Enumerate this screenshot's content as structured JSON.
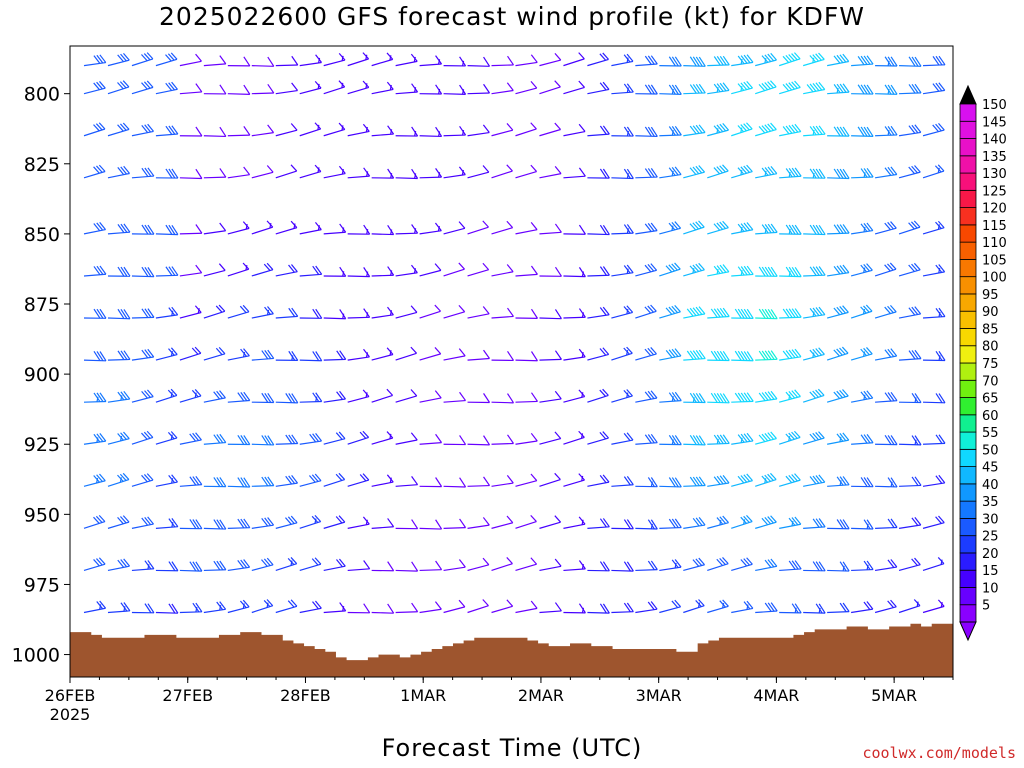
{
  "title": "2025022600 GFS forecast wind profile (kt) for KDFW",
  "chart_data": {
    "type": "wind-barb-profile",
    "title": "2025022600 GFS forecast wind profile (kt) for KDFW",
    "xlabel": "Forecast Time (UTC)",
    "ylabel": "",
    "x_ticks": [
      "26FEB",
      "27FEB",
      "28FEB",
      "1MAR",
      "2MAR",
      "3MAR",
      "4MAR",
      "5MAR"
    ],
    "x_year_label": "2025",
    "y_ticks": [
      800,
      825,
      850,
      875,
      900,
      925,
      950,
      975,
      1000
    ],
    "ylim": [
      1008,
      783
    ],
    "y_axis_reversed": true,
    "colorbar": {
      "values": [
        5,
        10,
        15,
        20,
        25,
        30,
        35,
        40,
        45,
        50,
        55,
        60,
        65,
        70,
        75,
        80,
        85,
        90,
        95,
        100,
        105,
        110,
        115,
        120,
        125,
        130,
        135,
        140,
        145,
        150
      ],
      "colors": [
        "#8a00ff",
        "#6800ff",
        "#4600ff",
        "#2a1cff",
        "#1c3cff",
        "#1a5aff",
        "#1478ff",
        "#1098ff",
        "#10b8ff",
        "#10d8ff",
        "#10f0d8",
        "#10f090",
        "#30f030",
        "#70f010",
        "#b0f010",
        "#f0f010",
        "#f8d800",
        "#f8c000",
        "#f8a800",
        "#f89000",
        "#f87800",
        "#f86000",
        "#f84800",
        "#f83020",
        "#f81848",
        "#f8107a",
        "#f010a8",
        "#e810c8",
        "#e010e0",
        "#d810f0"
      ]
    },
    "surface_pressure_hpa": [
      992,
      992,
      993,
      994,
      994,
      994,
      994,
      993,
      993,
      993,
      994,
      994,
      994,
      994,
      993,
      993,
      992,
      992,
      993,
      993,
      995,
      996,
      997,
      998,
      999,
      1001,
      1002,
      1002,
      1001,
      1000,
      1000,
      1001,
      1000,
      999,
      998,
      997,
      996,
      995,
      994,
      994,
      994,
      994,
      994,
      995,
      996,
      997,
      997,
      996,
      996,
      997,
      997,
      998,
      998,
      998,
      998,
      998,
      998,
      999,
      999,
      996,
      995,
      994,
      994,
      994,
      994,
      994,
      994,
      994,
      993,
      992,
      991,
      991,
      991,
      990,
      990,
      991,
      991,
      990,
      990,
      989,
      990,
      989,
      989
    ],
    "wind_rows": [
      {
        "level": 790,
        "speeds": [
          30,
          30,
          30,
          30,
          8,
          8,
          8,
          10,
          12,
          15,
          15,
          15,
          15,
          15,
          15,
          15,
          12,
          10,
          8,
          8,
          12,
          20,
          25,
          28,
          32,
          40,
          42,
          44,
          45,
          48,
          46,
          42,
          38,
          35,
          32,
          30
        ]
      },
      {
        "level": 800,
        "speeds": [
          30,
          30,
          30,
          30,
          8,
          8,
          8,
          10,
          12,
          15,
          15,
          15,
          15,
          15,
          15,
          15,
          12,
          10,
          8,
          8,
          12,
          20,
          25,
          28,
          35,
          42,
          44,
          46,
          48,
          50,
          48,
          44,
          40,
          36,
          32,
          30
        ]
      },
      {
        "level": 815,
        "speeds": [
          30,
          30,
          30,
          30,
          8,
          8,
          8,
          10,
          12,
          15,
          15,
          15,
          15,
          15,
          15,
          15,
          12,
          10,
          8,
          8,
          12,
          20,
          25,
          28,
          35,
          42,
          44,
          46,
          48,
          48,
          46,
          42,
          38,
          35,
          30,
          28
        ]
      },
      {
        "level": 830,
        "speeds": [
          30,
          30,
          30,
          30,
          8,
          8,
          8,
          10,
          12,
          15,
          15,
          15,
          15,
          15,
          15,
          15,
          12,
          10,
          8,
          8,
          12,
          20,
          25,
          28,
          35,
          42,
          42,
          44,
          45,
          45,
          44,
          40,
          36,
          32,
          28,
          26
        ]
      },
      {
        "level": 850,
        "speeds": [
          30,
          30,
          30,
          30,
          10,
          12,
          15,
          15,
          15,
          15,
          15,
          15,
          15,
          15,
          15,
          12,
          10,
          8,
          8,
          8,
          12,
          20,
          25,
          28,
          35,
          42,
          42,
          44,
          45,
          45,
          42,
          38,
          34,
          30,
          28,
          25
        ]
      },
      {
        "level": 865,
        "speeds": [
          30,
          30,
          30,
          30,
          10,
          12,
          15,
          18,
          18,
          18,
          15,
          15,
          15,
          15,
          12,
          10,
          8,
          8,
          8,
          10,
          15,
          20,
          25,
          30,
          38,
          45,
          46,
          46,
          48,
          46,
          42,
          38,
          34,
          30,
          28,
          25
        ]
      },
      {
        "level": 880,
        "speeds": [
          30,
          30,
          30,
          25,
          15,
          18,
          22,
          25,
          22,
          20,
          15,
          15,
          15,
          12,
          10,
          8,
          8,
          8,
          10,
          12,
          15,
          20,
          25,
          30,
          38,
          48,
          50,
          50,
          52,
          48,
          44,
          40,
          36,
          32,
          28,
          25
        ]
      },
      {
        "level": 895,
        "speeds": [
          30,
          30,
          30,
          25,
          20,
          22,
          25,
          28,
          25,
          22,
          18,
          15,
          15,
          12,
          10,
          8,
          8,
          8,
          10,
          12,
          15,
          20,
          25,
          30,
          38,
          48,
          50,
          50,
          52,
          48,
          44,
          40,
          36,
          32,
          28,
          25
        ]
      },
      {
        "level": 910,
        "speeds": [
          35,
          35,
          30,
          25,
          25,
          28,
          30,
          30,
          28,
          25,
          20,
          15,
          12,
          12,
          10,
          8,
          8,
          8,
          10,
          12,
          15,
          20,
          25,
          30,
          35,
          45,
          48,
          48,
          50,
          46,
          42,
          38,
          34,
          30,
          26,
          22
        ]
      },
      {
        "level": 925,
        "speeds": [
          35,
          35,
          30,
          25,
          30,
          32,
          32,
          32,
          30,
          28,
          22,
          18,
          15,
          12,
          10,
          8,
          8,
          8,
          10,
          12,
          15,
          20,
          22,
          28,
          35,
          42,
          45,
          45,
          48,
          45,
          40,
          36,
          32,
          28,
          25,
          22
        ]
      },
      {
        "level": 940,
        "speeds": [
          35,
          35,
          30,
          25,
          30,
          32,
          32,
          32,
          30,
          28,
          22,
          18,
          15,
          12,
          10,
          8,
          8,
          8,
          10,
          12,
          15,
          18,
          22,
          26,
          32,
          38,
          40,
          42,
          44,
          42,
          38,
          34,
          30,
          26,
          22,
          20
        ]
      },
      {
        "level": 955,
        "speeds": [
          30,
          30,
          28,
          25,
          30,
          30,
          30,
          30,
          28,
          25,
          20,
          15,
          12,
          10,
          10,
          8,
          8,
          8,
          10,
          12,
          15,
          18,
          20,
          24,
          28,
          32,
          34,
          36,
          38,
          36,
          32,
          30,
          26,
          22,
          20,
          18
        ]
      },
      {
        "level": 970,
        "speeds": [
          28,
          28,
          25,
          22,
          28,
          28,
          28,
          28,
          25,
          22,
          18,
          12,
          10,
          10,
          10,
          8,
          8,
          8,
          10,
          12,
          15,
          18,
          20,
          22,
          25,
          28,
          30,
          30,
          32,
          30,
          28,
          26,
          24,
          20,
          18,
          16
        ]
      },
      {
        "level": 985,
        "speeds": [
          25,
          25,
          22,
          20,
          25,
          25,
          25,
          25,
          22,
          20,
          15,
          10,
          8,
          8,
          8,
          8,
          8,
          8,
          10,
          12,
          15,
          18,
          18,
          20,
          22,
          25,
          26,
          26,
          28,
          26,
          24,
          22,
          20,
          18,
          16,
          14
        ]
      }
    ]
  },
  "credit": "coolwx.com/models"
}
